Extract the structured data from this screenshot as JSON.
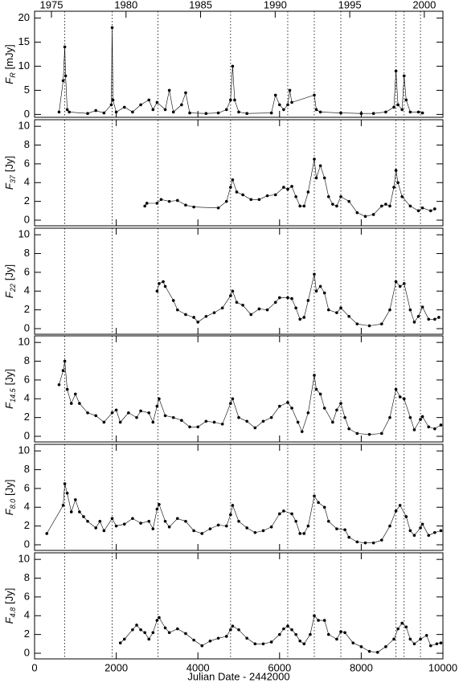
{
  "x_axis": {
    "xlim": [
      0,
      10000
    ],
    "xticks": [
      0,
      2000,
      4000,
      6000,
      8000,
      10000
    ],
    "xlabel": "Julian Date - 2442000",
    "top_ticks": [
      {
        "value": 413.5,
        "label": "1975"
      },
      {
        "value": 2239.5,
        "label": "1980"
      },
      {
        "value": 4065.5,
        "label": "1985"
      },
      {
        "value": 5892.5,
        "label": "1990"
      },
      {
        "value": 7718.5,
        "label": "1995"
      },
      {
        "value": 9544.5,
        "label": "2000"
      }
    ],
    "vlines": [
      740,
      1900,
      3020,
      4800,
      6200,
      6850,
      7500,
      8850,
      9050,
      9450
    ]
  },
  "chart_data": [
    {
      "type": "line",
      "ylabel": {
        "symbol": "F",
        "sub": "R",
        "unit": "[mJy]"
      },
      "ylim": [
        -0.6,
        21.4
      ],
      "yticks": [
        0,
        5,
        10,
        15,
        20
      ],
      "x": [
        600,
        700,
        740,
        760,
        800,
        850,
        1300,
        1500,
        1700,
        1880,
        1900,
        1920,
        2000,
        2200,
        2400,
        2600,
        2800,
        2900,
        3000,
        3200,
        3300,
        3400,
        3600,
        3700,
        3800,
        4200,
        4500,
        4700,
        4800,
        4850,
        4900,
        5000,
        5200,
        5800,
        5900,
        6000,
        6100,
        6200,
        6250,
        6300,
        6850,
        6900,
        7000,
        7500,
        8000,
        8300,
        8600,
        8800,
        8850,
        8900,
        9000,
        9050,
        9100,
        9200,
        9400,
        9500
      ],
      "values": [
        0.5,
        7,
        14,
        8,
        1,
        0.5,
        0.2,
        0.8,
        0.3,
        2,
        18,
        3,
        0.5,
        1.5,
        0.5,
        2,
        3,
        1,
        2.5,
        1,
        5,
        0.5,
        2,
        4.5,
        0.3,
        0.2,
        0.3,
        1,
        3,
        10,
        3,
        0.5,
        0.2,
        0.3,
        4,
        2,
        1,
        2,
        5,
        2.5,
        4,
        1,
        0.5,
        0.3,
        0.2,
        0.2,
        0.5,
        1.5,
        9,
        2,
        1,
        8,
        3,
        0.5,
        0.5,
        0.3
      ]
    },
    {
      "type": "line",
      "ylabel": {
        "symbol": "F",
        "sub": "37",
        "unit": "[Jy]"
      },
      "ylim": [
        -0.6,
        10.7
      ],
      "yticks": [
        0,
        2,
        4,
        6,
        8,
        10
      ],
      "x": [
        2700,
        2750,
        3000,
        3100,
        3300,
        3500,
        3700,
        3900,
        4500,
        4700,
        4800,
        4850,
        4950,
        5100,
        5300,
        5500,
        5700,
        5900,
        6100,
        6200,
        6300,
        6400,
        6500,
        6600,
        6700,
        6850,
        6900,
        7000,
        7100,
        7200,
        7300,
        7400,
        7500,
        7700,
        7900,
        8100,
        8300,
        8500,
        8600,
        8700,
        8800,
        8850,
        8900,
        9000,
        9200,
        9400,
        9500,
        9700,
        9800
      ],
      "values": [
        1.5,
        1.8,
        1.8,
        2.2,
        2,
        2.1,
        1.6,
        1.4,
        1.3,
        2,
        3.5,
        4.3,
        3,
        2.7,
        2.2,
        2.2,
        2.6,
        2.7,
        3.5,
        3.3,
        3.6,
        2.5,
        1.5,
        1.5,
        3,
        6.5,
        4.5,
        5.8,
        4.5,
        2.5,
        1.7,
        1.5,
        2.5,
        2,
        0.8,
        0.4,
        0.6,
        1.5,
        1.7,
        1.5,
        3.5,
        5.3,
        4,
        2.5,
        1.5,
        1,
        1.3,
        1,
        1.2
      ]
    },
    {
      "type": "line",
      "ylabel": {
        "symbol": "F",
        "sub": "22",
        "unit": "[Jy]"
      },
      "ylim": [
        -0.6,
        10.7
      ],
      "yticks": [
        0,
        2,
        4,
        6,
        8,
        10
      ],
      "x": [
        3000,
        3050,
        3150,
        3200,
        3400,
        3500,
        3700,
        3900,
        4000,
        4200,
        4400,
        4600,
        4800,
        4850,
        4950,
        5100,
        5300,
        5500,
        5700,
        5900,
        6000,
        6200,
        6300,
        6400,
        6500,
        6600,
        6700,
        6850,
        6900,
        7000,
        7100,
        7200,
        7400,
        7500,
        7700,
        7900,
        8200,
        8500,
        8700,
        8850,
        8950,
        9050,
        9200,
        9300,
        9400,
        9500,
        9650,
        9800,
        9900
      ],
      "values": [
        4,
        4.8,
        5,
        4.5,
        3,
        2,
        1.5,
        1.2,
        0.7,
        1.3,
        1.7,
        2.2,
        3.5,
        4,
        2.8,
        2.5,
        1.5,
        2.1,
        2,
        2.8,
        3.3,
        3.3,
        3.2,
        2.2,
        1,
        1.2,
        3,
        5.8,
        4,
        4.5,
        3.8,
        2,
        1.7,
        2.2,
        1.3,
        0.5,
        0.3,
        0.5,
        2,
        5,
        4.5,
        4.8,
        2,
        0.7,
        1.3,
        2.3,
        1,
        1,
        1.2
      ]
    },
    {
      "type": "line",
      "ylabel": {
        "symbol": "F",
        "sub": "14.5",
        "unit": "[Jy]"
      },
      "ylim": [
        -0.6,
        10.7
      ],
      "yticks": [
        0,
        2,
        4,
        6,
        8,
        10
      ],
      "x": [
        600,
        700,
        740,
        800,
        900,
        1000,
        1100,
        1300,
        1500,
        1700,
        1900,
        2000,
        2100,
        2300,
        2500,
        2600,
        2800,
        2900,
        3000,
        3050,
        3200,
        3400,
        3600,
        3800,
        4000,
        4200,
        4400,
        4600,
        4800,
        4850,
        5000,
        5200,
        5400,
        5600,
        5800,
        6000,
        6200,
        6300,
        6450,
        6550,
        6700,
        6850,
        6900,
        7000,
        7100,
        7300,
        7400,
        7500,
        7600,
        7700,
        7900,
        8200,
        8500,
        8700,
        8850,
        8950,
        9050,
        9200,
        9300,
        9450,
        9500,
        9650,
        9800,
        9950
      ],
      "values": [
        5.5,
        7,
        8,
        5,
        3.5,
        4.5,
        3.5,
        2.5,
        2.2,
        1.5,
        2.5,
        2.8,
        1.5,
        2.5,
        2,
        2.7,
        2.5,
        1.5,
        3.2,
        4,
        2.2,
        2,
        1.7,
        1,
        1,
        1.6,
        1.5,
        1.3,
        3.5,
        4,
        2,
        1.6,
        0.9,
        1.6,
        2,
        3.2,
        3.6,
        3,
        1.5,
        0.5,
        2.5,
        6.5,
        5,
        4.5,
        3,
        1.5,
        2.8,
        3.5,
        2,
        0.8,
        0.3,
        0.2,
        0.3,
        2,
        5,
        4.2,
        4,
        2,
        0.7,
        1.8,
        2.1,
        1,
        0.8,
        1.2
      ]
    },
    {
      "type": "line",
      "ylabel": {
        "symbol": "F",
        "sub": "8.0",
        "unit": "[Jy]"
      },
      "ylim": [
        -0.6,
        10.7
      ],
      "yticks": [
        0,
        2,
        4,
        6,
        8,
        10
      ],
      "x": [
        300,
        700,
        740,
        800,
        900,
        1000,
        1100,
        1200,
        1300,
        1500,
        1600,
        1700,
        1900,
        2000,
        2200,
        2400,
        2600,
        2800,
        2900,
        3000,
        3050,
        3200,
        3300,
        3500,
        3700,
        3900,
        4100,
        4300,
        4500,
        4700,
        4800,
        4850,
        5000,
        5200,
        5400,
        5600,
        5800,
        6000,
        6100,
        6300,
        6400,
        6500,
        6600,
        6700,
        6850,
        6950,
        7100,
        7200,
        7400,
        7600,
        7700,
        7900,
        8100,
        8300,
        8500,
        8700,
        8850,
        8950,
        9100,
        9200,
        9300,
        9450,
        9500,
        9650,
        9800,
        9950
      ],
      "values": [
        1.2,
        4.2,
        6.5,
        5.5,
        3.5,
        4.8,
        3.5,
        3,
        2.5,
        1.8,
        2.5,
        1.5,
        2.8,
        2,
        2.2,
        2.8,
        2.3,
        2.5,
        1.7,
        3.8,
        4.3,
        2.5,
        1.9,
        2.8,
        2.5,
        1.5,
        1.2,
        1.7,
        2.1,
        2,
        3.2,
        4.2,
        2.5,
        1.8,
        1.3,
        1.5,
        1.9,
        3.3,
        3.6,
        3.3,
        2.5,
        1.2,
        1.2,
        2,
        5.2,
        4.5,
        4,
        2.5,
        1.7,
        1.6,
        0.8,
        0.3,
        0.2,
        0.2,
        0.5,
        2,
        3.6,
        4.2,
        3,
        1.5,
        1,
        1.8,
        2.2,
        1,
        1.3,
        1.5
      ]
    },
    {
      "type": "line",
      "ylabel": {
        "symbol": "F",
        "sub": "4.8",
        "unit": "[Jy]"
      },
      "ylim": [
        -0.6,
        10.7
      ],
      "yticks": [
        0,
        2,
        4,
        6,
        8,
        10
      ],
      "x": [
        2100,
        2200,
        2400,
        2500,
        2600,
        2700,
        2800,
        2900,
        3000,
        3050,
        3200,
        3300,
        3500,
        3700,
        3900,
        4100,
        4300,
        4500,
        4700,
        4800,
        4850,
        5000,
        5200,
        5400,
        5600,
        5800,
        6000,
        6100,
        6200,
        6300,
        6400,
        6500,
        6600,
        6750,
        6850,
        6950,
        7100,
        7200,
        7400,
        7500,
        7600,
        7800,
        8000,
        8200,
        8400,
        8600,
        8800,
        8900,
        9000,
        9100,
        9200,
        9300,
        9450,
        9600,
        9700,
        9850,
        9950
      ],
      "values": [
        1.1,
        1.5,
        2.5,
        3,
        2.5,
        2.2,
        1.5,
        2.2,
        3.5,
        3.8,
        2.7,
        2.2,
        2.6,
        2.1,
        1.4,
        0.8,
        1.3,
        1.6,
        1.8,
        2.5,
        2.9,
        2.5,
        1.6,
        1,
        1,
        1.2,
        2,
        2.6,
        2.9,
        2.5,
        2,
        1.3,
        1,
        2,
        4,
        3.5,
        3.5,
        2,
        1.5,
        2.3,
        2.2,
        1.1,
        0.7,
        0.2,
        0.1,
        0.7,
        1.5,
        2.6,
        3.2,
        2.8,
        1.5,
        1,
        1.5,
        1.9,
        0.8,
        1,
        1.1
      ]
    }
  ]
}
